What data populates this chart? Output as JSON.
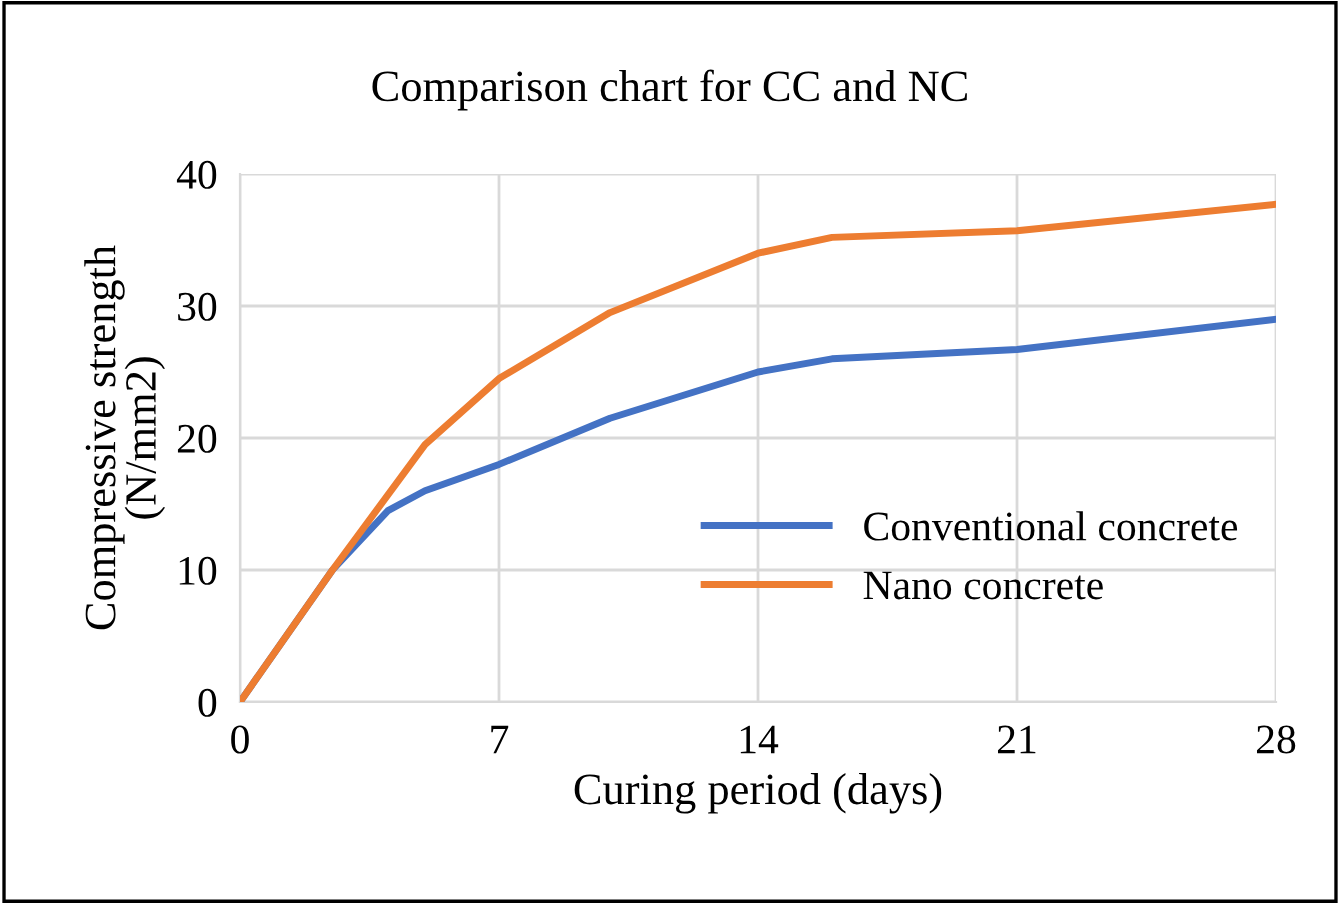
{
  "chart_data": {
    "type": "line",
    "title": "Comparison chart for CC and NC",
    "xlabel": "Curing period (days)",
    "ylabel": "Compressive strength\n(N/mm2)",
    "xlim": [
      0,
      28
    ],
    "xticks": [
      0,
      7,
      14,
      21,
      28
    ],
    "ylim": [
      0,
      40
    ],
    "yticks": [
      0,
      10,
      20,
      30,
      40
    ],
    "grid": true,
    "legend": "right",
    "marker": "none",
    "line_style": "solid",
    "series": [
      {
        "name": "Conventional concrete",
        "color": "#4472c4",
        "x": [
          0,
          2.5,
          4,
          5,
          7,
          10,
          14,
          16,
          21,
          28
        ],
        "values": [
          0,
          10,
          14.5,
          16,
          18,
          21.5,
          25,
          26,
          26.7,
          29
        ]
      },
      {
        "name": "Nano concrete",
        "color": "#ed7d31",
        "x": [
          0,
          2.5,
          5,
          7,
          10,
          14,
          16,
          21,
          28
        ],
        "values": [
          0,
          10,
          19.5,
          24.5,
          29.5,
          34,
          35.2,
          35.7,
          37.7
        ]
      }
    ]
  }
}
